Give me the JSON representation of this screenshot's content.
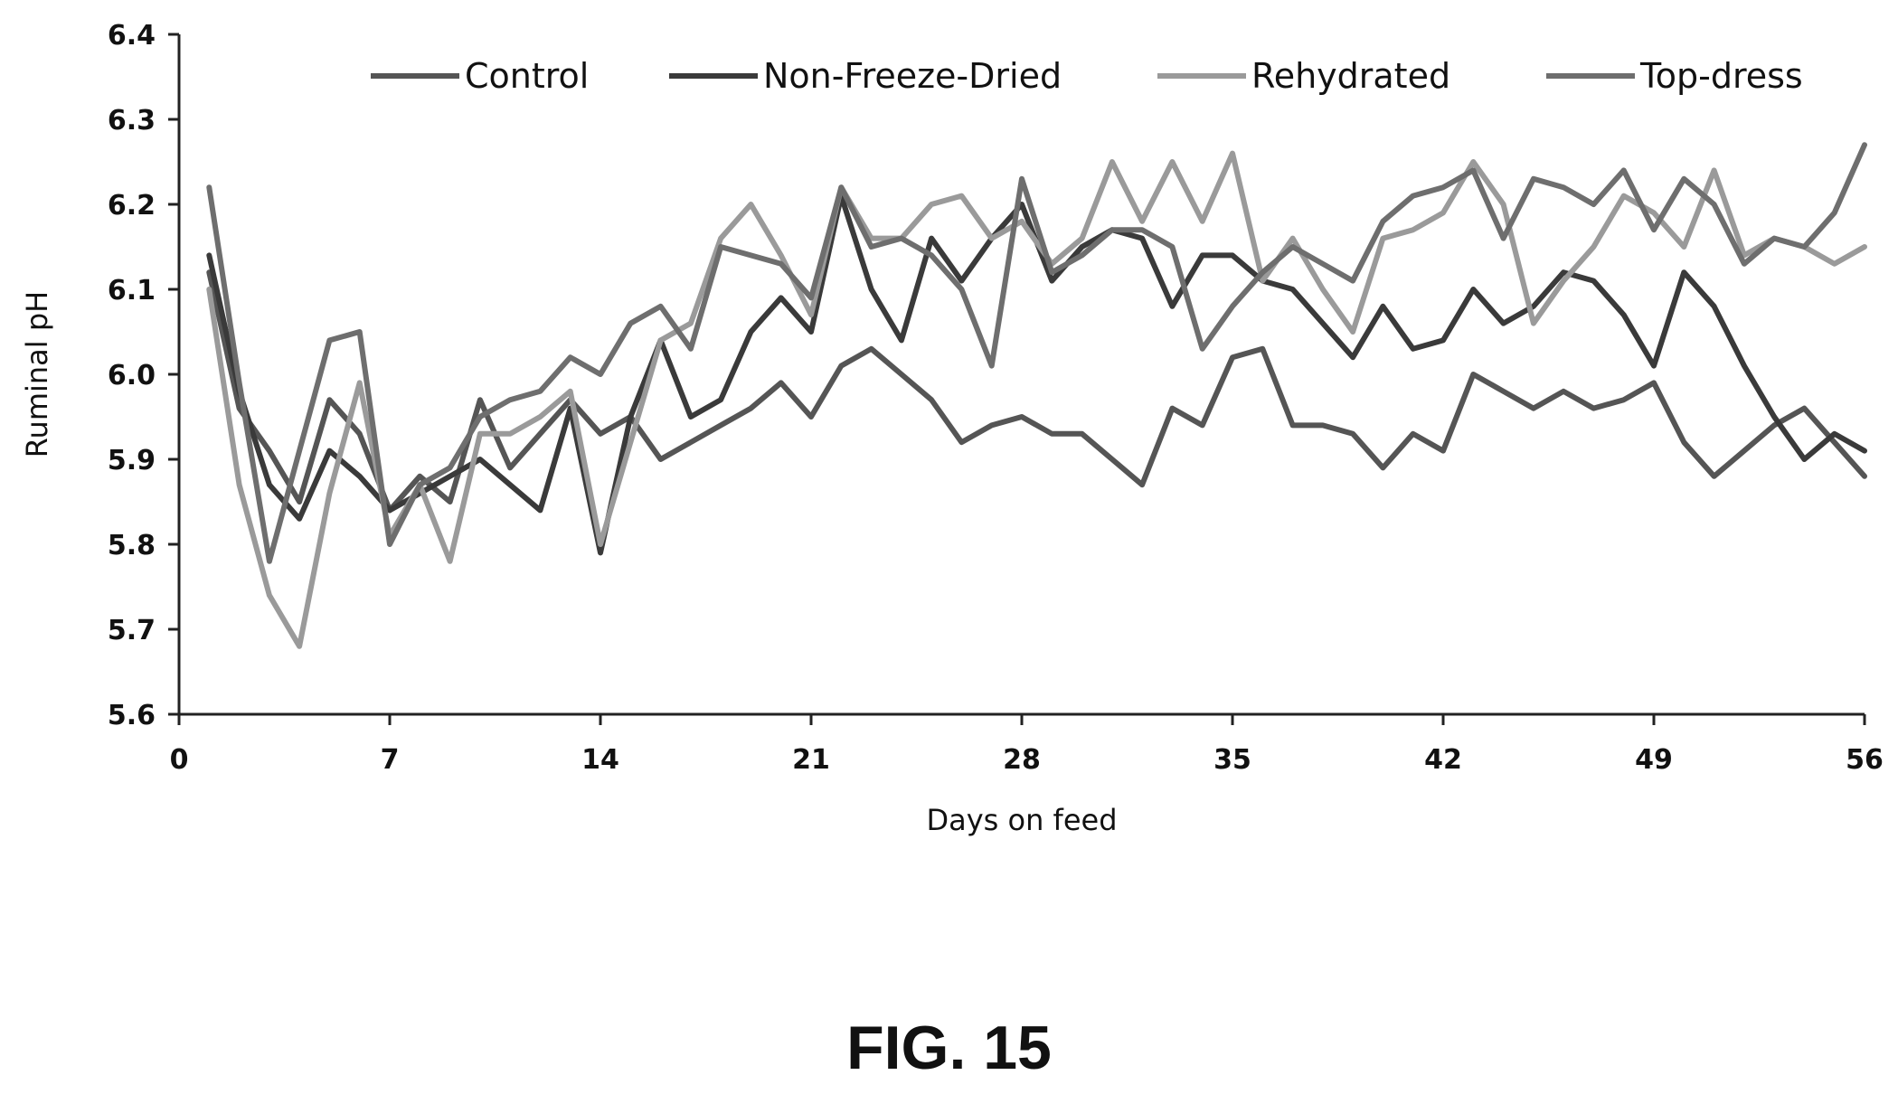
{
  "figure": {
    "caption": "FIG. 15"
  },
  "colors": {
    "axis": "#222222",
    "text": "#111111"
  },
  "chart_data": {
    "type": "line",
    "xlabel": "Days on feed",
    "ylabel": "Ruminal pH",
    "xlim": [
      0,
      56
    ],
    "ylim": [
      5.6,
      6.4
    ],
    "xticks": [
      0,
      7,
      14,
      21,
      28,
      35,
      42,
      49,
      56
    ],
    "yticks": [
      5.6,
      5.7,
      5.8,
      5.9,
      6.0,
      6.1,
      6.2,
      6.3,
      6.4
    ],
    "xtick_labels": [
      "0",
      "7",
      "14",
      "21",
      "28",
      "35",
      "42",
      "49",
      "56"
    ],
    "ytick_labels": [
      "5.6",
      "5.7",
      "5.8",
      "5.9",
      "6.0",
      "6.1",
      "6.2",
      "6.3",
      "6.4"
    ],
    "grid": false,
    "legend_position": "top",
    "x": [
      1,
      2,
      3,
      4,
      5,
      6,
      7,
      8,
      9,
      10,
      11,
      12,
      13,
      14,
      15,
      16,
      17,
      18,
      19,
      20,
      21,
      22,
      23,
      24,
      25,
      26,
      27,
      28,
      29,
      30,
      31,
      32,
      33,
      34,
      35,
      36,
      37,
      38,
      39,
      40,
      41,
      42,
      43,
      44,
      45,
      46,
      47,
      48,
      49,
      50,
      51,
      52,
      53,
      54,
      55,
      56
    ],
    "series": [
      {
        "name": "Control",
        "color": "#555555",
        "values": [
          6.12,
          5.96,
          5.91,
          5.85,
          5.97,
          5.93,
          5.84,
          5.88,
          5.85,
          5.97,
          5.89,
          5.93,
          5.97,
          5.93,
          5.95,
          5.9,
          5.92,
          5.94,
          5.96,
          5.99,
          5.95,
          6.01,
          6.03,
          6.0,
          5.97,
          5.92,
          5.94,
          5.95,
          5.93,
          5.93,
          5.9,
          5.87,
          5.96,
          5.94,
          6.02,
          6.03,
          5.94,
          5.94,
          5.93,
          5.89,
          5.93,
          5.91,
          6.0,
          5.98,
          5.96,
          5.98,
          5.96,
          5.97,
          5.99,
          5.92,
          5.88,
          5.91,
          5.94,
          5.96,
          5.92,
          5.88
        ]
      },
      {
        "name": "Non-Freeze-Dried",
        "color": "#3a3a3a",
        "values": [
          6.14,
          5.98,
          5.87,
          5.83,
          5.91,
          5.88,
          5.84,
          5.86,
          5.88,
          5.9,
          5.87,
          5.84,
          5.96,
          5.79,
          5.95,
          6.04,
          5.95,
          5.97,
          6.05,
          6.09,
          6.05,
          6.21,
          6.1,
          6.04,
          6.16,
          6.11,
          6.16,
          6.2,
          6.11,
          6.15,
          6.17,
          6.16,
          6.08,
          6.14,
          6.14,
          6.11,
          6.1,
          6.06,
          6.02,
          6.08,
          6.03,
          6.04,
          6.1,
          6.06,
          6.08,
          6.12,
          6.11,
          6.07,
          6.01,
          6.12,
          6.08,
          6.01,
          5.95,
          5.9,
          5.93,
          5.91
        ]
      },
      {
        "name": "Rehydrated",
        "color": "#9a9a9a",
        "values": [
          6.1,
          5.87,
          5.74,
          5.68,
          5.86,
          5.99,
          5.81,
          5.87,
          5.78,
          5.93,
          5.93,
          5.95,
          5.98,
          5.8,
          5.92,
          6.04,
          6.06,
          6.16,
          6.2,
          6.14,
          6.07,
          6.22,
          6.16,
          6.16,
          6.2,
          6.21,
          6.16,
          6.18,
          6.13,
          6.16,
          6.25,
          6.18,
          6.25,
          6.18,
          6.26,
          6.11,
          6.16,
          6.1,
          6.05,
          6.16,
          6.17,
          6.19,
          6.25,
          6.2,
          6.06,
          6.11,
          6.15,
          6.21,
          6.19,
          6.15,
          6.24,
          6.14,
          6.16,
          6.15,
          6.13,
          6.15
        ]
      },
      {
        "name": "Top-dress",
        "color": "#6e6e6e",
        "values": [
          6.22,
          5.99,
          5.78,
          5.91,
          6.04,
          6.05,
          5.8,
          5.87,
          5.89,
          5.95,
          5.97,
          5.98,
          6.02,
          6.0,
          6.06,
          6.08,
          6.03,
          6.15,
          6.14,
          6.13,
          6.09,
          6.22,
          6.15,
          6.16,
          6.14,
          6.1,
          6.01,
          6.23,
          6.12,
          6.14,
          6.17,
          6.17,
          6.15,
          6.03,
          6.08,
          6.12,
          6.15,
          6.13,
          6.11,
          6.18,
          6.21,
          6.22,
          6.24,
          6.16,
          6.23,
          6.22,
          6.2,
          6.24,
          6.17,
          6.23,
          6.2,
          6.13,
          6.16,
          6.15,
          6.19,
          6.27
        ]
      }
    ]
  }
}
